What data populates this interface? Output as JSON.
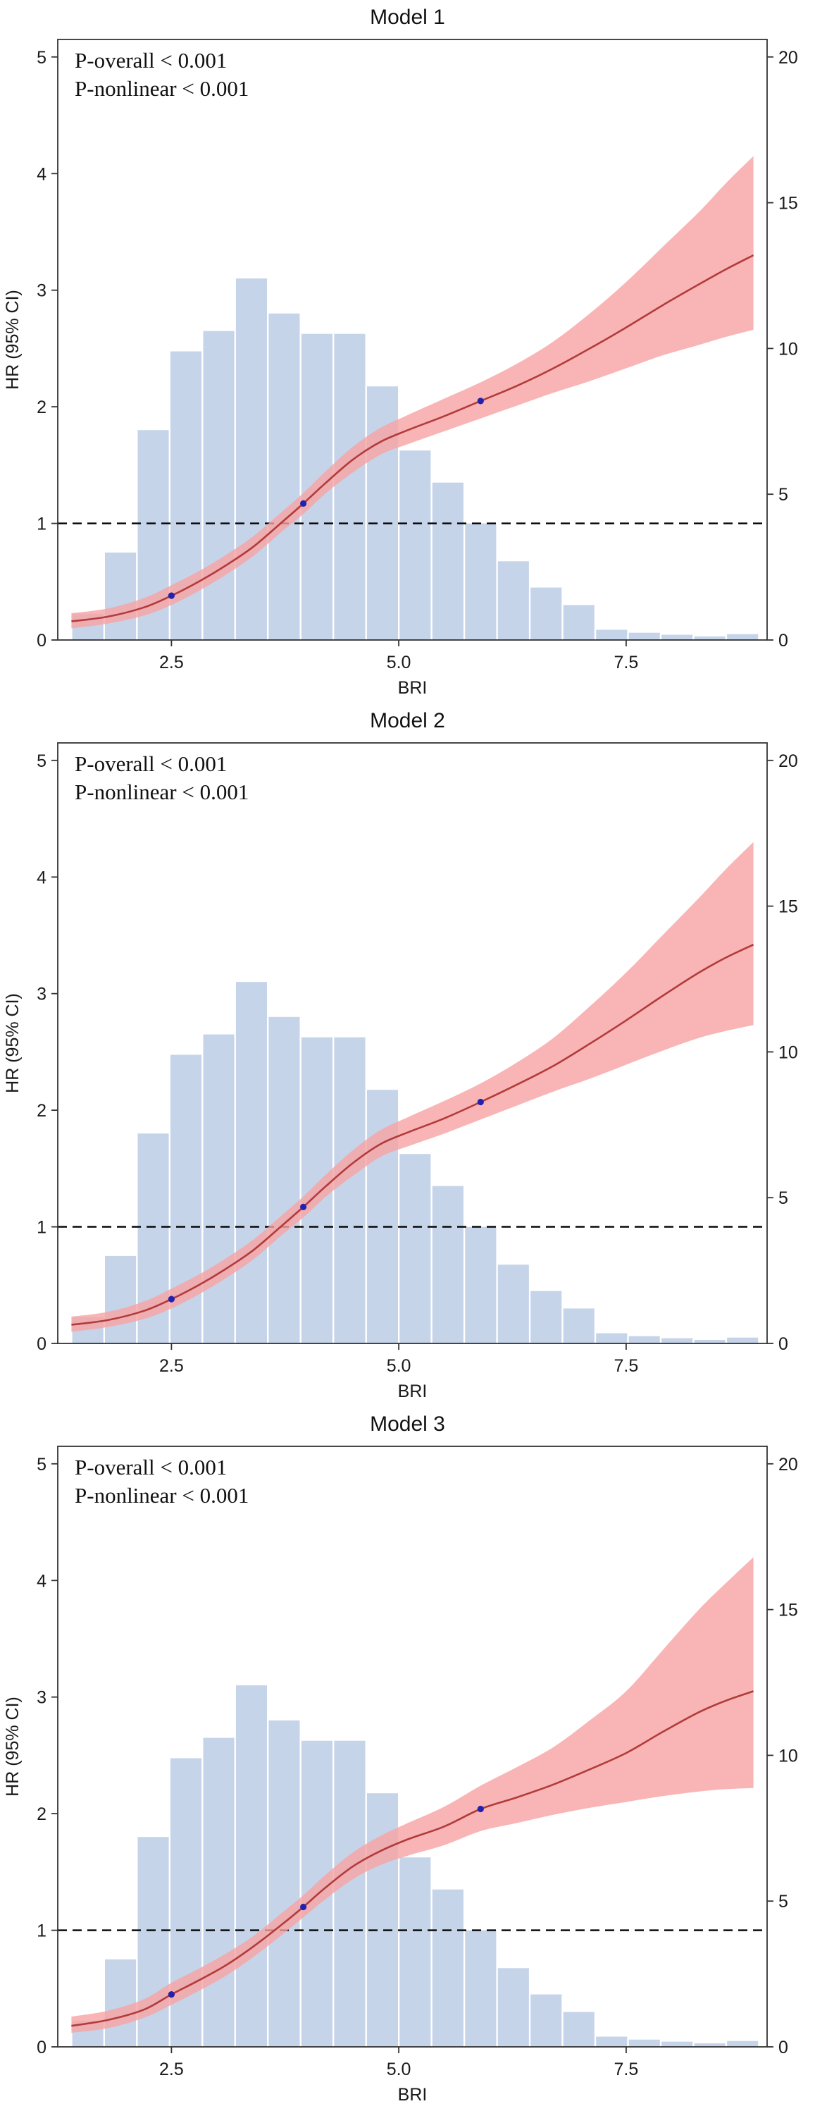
{
  "colors": {
    "band": "#f8a3a3",
    "curve": "#b23b3b",
    "histogram_bar": "#c6d4ea",
    "knot": "#2222b0",
    "reference_line": "#000000",
    "axis": "#333333",
    "text": "#1a1a1a"
  },
  "chart_data": [
    {
      "type": "line",
      "title": "Model 1",
      "annotations": [
        "P-overall < 0.001",
        "P-nonlinear < 0.001"
      ],
      "xlabel": "BRI",
      "ylabel_left": "HR (95% CI)",
      "xlim": [
        1.25,
        9.05
      ],
      "ylim_left": [
        0,
        5.15
      ],
      "ylim_right": [
        0,
        20.6
      ],
      "x_ticks": [
        2.5,
        5.0,
        7.5
      ],
      "x_tick_labels": [
        "2.5",
        "5.0",
        "7.5"
      ],
      "y_ticks_left": [
        0,
        1,
        2,
        3,
        4,
        5
      ],
      "y_ticks_right": [
        0,
        5,
        10,
        15,
        20
      ],
      "reference_line_y": 1,
      "spline": {
        "x": [
          1.4,
          1.8,
          2.2,
          2.5,
          2.8,
          3.1,
          3.4,
          3.7,
          3.95,
          4.2,
          4.5,
          4.8,
          5.1,
          5.5,
          5.9,
          6.3,
          6.7,
          7.1,
          7.5,
          7.9,
          8.3,
          8.6,
          8.9
        ],
        "hr": [
          0.16,
          0.2,
          0.28,
          0.38,
          0.5,
          0.64,
          0.8,
          1.0,
          1.17,
          1.35,
          1.55,
          1.7,
          1.8,
          1.92,
          2.05,
          2.18,
          2.33,
          2.5,
          2.68,
          2.87,
          3.05,
          3.18,
          3.3
        ],
        "ci_low": [
          0.1,
          0.14,
          0.21,
          0.3,
          0.42,
          0.56,
          0.72,
          0.92,
          1.08,
          1.26,
          1.44,
          1.59,
          1.68,
          1.79,
          1.9,
          2.01,
          2.12,
          2.22,
          2.33,
          2.44,
          2.53,
          2.6,
          2.66
        ],
        "ci_high": [
          0.23,
          0.27,
          0.36,
          0.47,
          0.59,
          0.73,
          0.89,
          1.09,
          1.26,
          1.45,
          1.66,
          1.82,
          1.93,
          2.07,
          2.21,
          2.37,
          2.56,
          2.8,
          3.07,
          3.37,
          3.67,
          3.92,
          4.15
        ]
      },
      "knots": [
        [
          2.5,
          0.38
        ],
        [
          3.95,
          1.17
        ],
        [
          5.9,
          2.05
        ]
      ],
      "histogram": {
        "bin_start": 1.4,
        "bin_width": 0.36,
        "counts_pct": [
          0.9,
          3.0,
          7.2,
          9.9,
          10.6,
          12.4,
          11.2,
          10.5,
          10.5,
          8.7,
          6.5,
          5.4,
          4.0,
          2.7,
          1.8,
          1.2,
          0.35,
          0.25,
          0.18,
          0.12,
          0.2
        ]
      }
    },
    {
      "type": "line",
      "title": "Model 2",
      "annotations": [
        "P-overall < 0.001",
        "P-nonlinear < 0.001"
      ],
      "xlabel": "BRI",
      "ylabel_left": "HR (95% CI)",
      "xlim": [
        1.25,
        9.05
      ],
      "ylim_left": [
        0,
        5.15
      ],
      "ylim_right": [
        0,
        20.6
      ],
      "x_ticks": [
        2.5,
        5.0,
        7.5
      ],
      "x_tick_labels": [
        "2.5",
        "5.0",
        "7.5"
      ],
      "y_ticks_left": [
        0,
        1,
        2,
        3,
        4,
        5
      ],
      "y_ticks_right": [
        0,
        5,
        10,
        15,
        20
      ],
      "reference_line_y": 1,
      "spline": {
        "x": [
          1.4,
          1.8,
          2.2,
          2.5,
          2.8,
          3.1,
          3.4,
          3.7,
          3.95,
          4.2,
          4.5,
          4.8,
          5.1,
          5.5,
          5.9,
          6.3,
          6.7,
          7.1,
          7.5,
          7.9,
          8.3,
          8.6,
          8.9
        ],
        "hr": [
          0.16,
          0.2,
          0.28,
          0.38,
          0.5,
          0.64,
          0.8,
          1.0,
          1.17,
          1.35,
          1.55,
          1.71,
          1.81,
          1.93,
          2.07,
          2.22,
          2.38,
          2.57,
          2.77,
          2.98,
          3.18,
          3.31,
          3.42
        ],
        "ci_low": [
          0.1,
          0.14,
          0.21,
          0.3,
          0.42,
          0.56,
          0.72,
          0.92,
          1.08,
          1.26,
          1.44,
          1.6,
          1.69,
          1.8,
          1.92,
          2.04,
          2.16,
          2.27,
          2.39,
          2.51,
          2.62,
          2.68,
          2.73
        ],
        "ci_high": [
          0.23,
          0.27,
          0.36,
          0.47,
          0.59,
          0.73,
          0.89,
          1.09,
          1.26,
          1.45,
          1.66,
          1.83,
          1.94,
          2.08,
          2.23,
          2.41,
          2.62,
          2.89,
          3.18,
          3.5,
          3.82,
          4.07,
          4.3
        ]
      },
      "knots": [
        [
          2.5,
          0.38
        ],
        [
          3.95,
          1.17
        ],
        [
          5.9,
          2.07
        ]
      ],
      "histogram": {
        "bin_start": 1.4,
        "bin_width": 0.36,
        "counts_pct": [
          0.9,
          3.0,
          7.2,
          9.9,
          10.6,
          12.4,
          11.2,
          10.5,
          10.5,
          8.7,
          6.5,
          5.4,
          4.0,
          2.7,
          1.8,
          1.2,
          0.35,
          0.25,
          0.18,
          0.12,
          0.2
        ]
      }
    },
    {
      "type": "line",
      "title": "Model 3",
      "annotations": [
        "P-overall < 0.001",
        "P-nonlinear < 0.001"
      ],
      "xlabel": "BRI",
      "ylabel_left": "HR (95% CI)",
      "xlim": [
        1.25,
        9.05
      ],
      "ylim_left": [
        0,
        5.15
      ],
      "ylim_right": [
        0,
        20.6
      ],
      "x_ticks": [
        2.5,
        5.0,
        7.5
      ],
      "x_tick_labels": [
        "2.5",
        "5.0",
        "7.5"
      ],
      "y_ticks_left": [
        0,
        1,
        2,
        3,
        4,
        5
      ],
      "y_ticks_right": [
        0,
        5,
        10,
        15,
        20
      ],
      "reference_line_y": 1,
      "spline": {
        "x": [
          1.4,
          1.8,
          2.2,
          2.5,
          2.8,
          3.1,
          3.4,
          3.7,
          3.95,
          4.2,
          4.5,
          4.8,
          5.1,
          5.5,
          5.9,
          6.3,
          6.7,
          7.1,
          7.5,
          7.9,
          8.3,
          8.6,
          8.9
        ],
        "hr": [
          0.18,
          0.23,
          0.32,
          0.45,
          0.57,
          0.7,
          0.86,
          1.04,
          1.2,
          1.37,
          1.55,
          1.68,
          1.78,
          1.89,
          2.04,
          2.14,
          2.25,
          2.38,
          2.52,
          2.7,
          2.87,
          2.97,
          3.05
        ],
        "ci_low": [
          0.12,
          0.16,
          0.25,
          0.36,
          0.48,
          0.61,
          0.77,
          0.95,
          1.11,
          1.27,
          1.44,
          1.56,
          1.64,
          1.73,
          1.85,
          1.92,
          1.99,
          2.05,
          2.1,
          2.15,
          2.19,
          2.21,
          2.22
        ],
        "ci_high": [
          0.26,
          0.31,
          0.41,
          0.55,
          0.67,
          0.8,
          0.95,
          1.14,
          1.3,
          1.48,
          1.67,
          1.81,
          1.92,
          2.06,
          2.24,
          2.4,
          2.57,
          2.8,
          3.05,
          3.4,
          3.75,
          3.98,
          4.2
        ]
      },
      "knots": [
        [
          2.5,
          0.45
        ],
        [
          3.95,
          1.2
        ],
        [
          5.9,
          2.04
        ]
      ],
      "histogram": {
        "bin_start": 1.4,
        "bin_width": 0.36,
        "counts_pct": [
          0.9,
          3.0,
          7.2,
          9.9,
          10.6,
          12.4,
          11.2,
          10.5,
          10.5,
          8.7,
          6.5,
          5.4,
          4.0,
          2.7,
          1.8,
          1.2,
          0.35,
          0.25,
          0.18,
          0.12,
          0.2
        ]
      }
    }
  ]
}
